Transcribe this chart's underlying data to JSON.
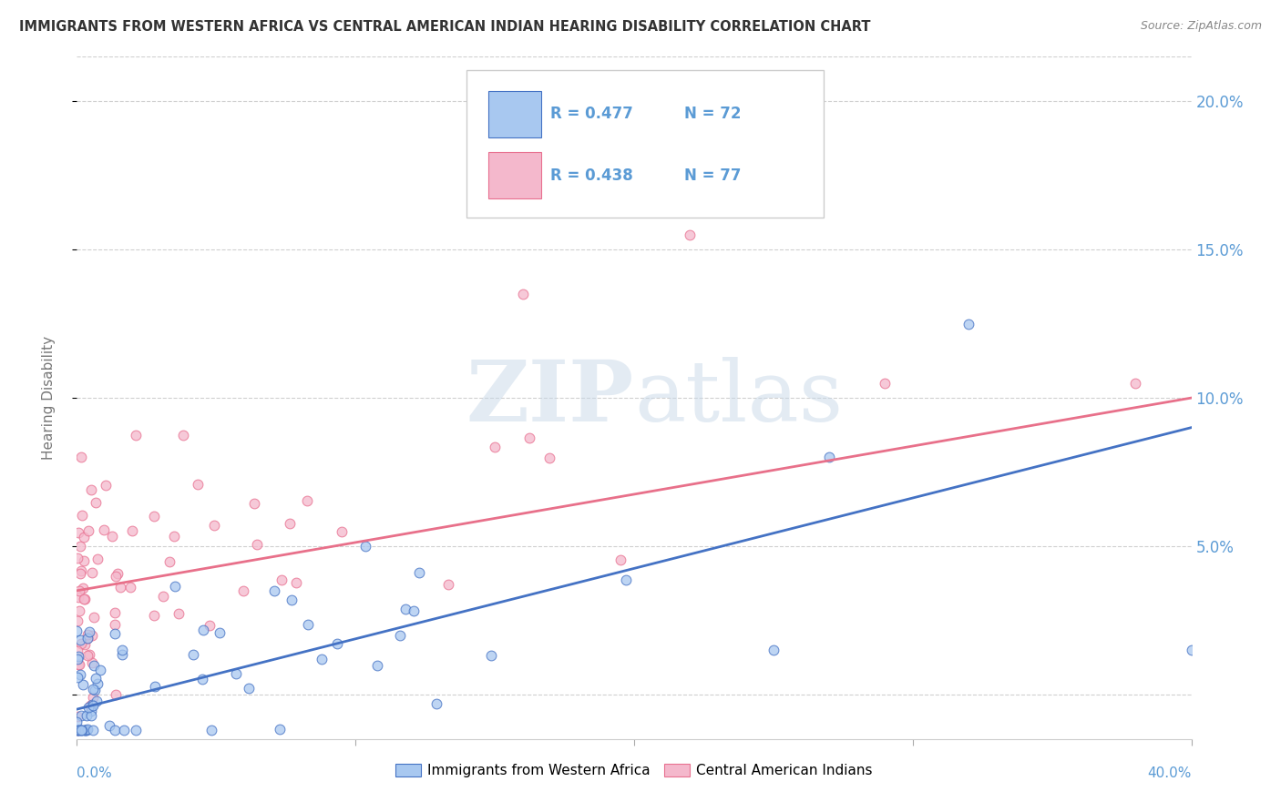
{
  "title": "IMMIGRANTS FROM WESTERN AFRICA VS CENTRAL AMERICAN INDIAN HEARING DISABILITY CORRELATION CHART",
  "source": "Source: ZipAtlas.com",
  "ylabel": "Hearing Disability",
  "xlim": [
    0.0,
    0.4
  ],
  "ylim": [
    -0.015,
    0.215
  ],
  "yticks": [
    0.0,
    0.05,
    0.1,
    0.15,
    0.2
  ],
  "ytick_labels": [
    "",
    "5.0%",
    "10.0%",
    "15.0%",
    "20.0%"
  ],
  "xticks": [
    0.0,
    0.1,
    0.2,
    0.3,
    0.4
  ],
  "color_blue_fill": "#A8C8F0",
  "color_blue_edge": "#4472C4",
  "color_pink_fill": "#F4B8CC",
  "color_pink_edge": "#E87090",
  "color_blue_line": "#4472C4",
  "color_pink_line": "#E8708A",
  "color_blue_text": "#5B9BD5",
  "color_pink_text": "#E87090",
  "color_legend_text": "#5B9BD5",
  "color_grid": "#D0D0D0",
  "color_axis_text": "#5B9BD5",
  "color_title": "#333333",
  "color_source": "#888888",
  "color_ylabel": "#777777",
  "watermark_color": "#C8D8E8",
  "watermark_alpha": 0.5,
  "legend_r1": "R = 0.477",
  "legend_n1": "N = 72",
  "legend_r2": "R = 0.438",
  "legend_n2": "N = 77",
  "blue_line_x0": 0.0,
  "blue_line_x1": 0.4,
  "blue_line_y0": -0.005,
  "blue_line_y1": 0.09,
  "pink_line_x0": 0.0,
  "pink_line_x1": 0.4,
  "pink_line_y0": 0.035,
  "pink_line_y1": 0.1,
  "scatter_size": 60,
  "scatter_alpha": 0.75,
  "scatter_linewidth": 0.8,
  "background_color": "#FFFFFF"
}
